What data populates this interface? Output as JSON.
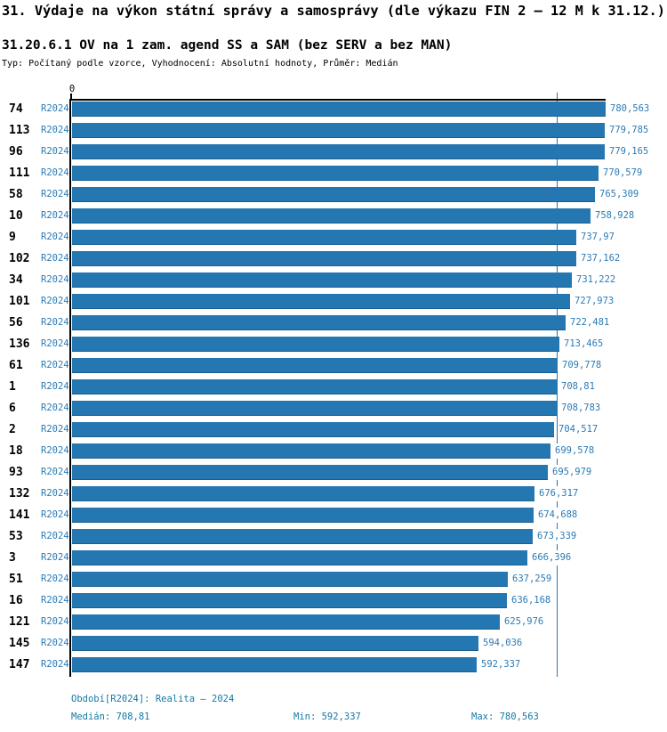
{
  "header": {
    "title": "31. Výdaje na výkon státní správy a samosprávy (dle výkazu FIN 2 – 12 M k 31.12.)",
    "subtitle": "31.20.6.1 OV na 1 zam. agend SS a SAM (bez SERV a bez MAN)",
    "meta": "Typ: Počítaný podle vzorce, Vyhodnocení: Absolutní hodnoty, Průměr: Medián"
  },
  "colors": {
    "bar": "#2577B2",
    "bar_edge": "#1A5E8E",
    "label_text": "#2B7BB5",
    "footer_text": "#1578A5",
    "axis": "#000000"
  },
  "chart_data": {
    "type": "bar",
    "orientation": "horizontal",
    "axis_zero_label": "0",
    "series_label": "R2024",
    "xlim": [
      0,
      780.563
    ],
    "median_value": 708.81,
    "min_value": 592.337,
    "max_value": 780.563,
    "rows": [
      {
        "id": "74",
        "period": "R2024",
        "value": 780.563,
        "label": "780,563"
      },
      {
        "id": "113",
        "period": "R2024",
        "value": 779.785,
        "label": "779,785"
      },
      {
        "id": "96",
        "period": "R2024",
        "value": 779.165,
        "label": "779,165"
      },
      {
        "id": "111",
        "period": "R2024",
        "value": 770.579,
        "label": "770,579"
      },
      {
        "id": "58",
        "period": "R2024",
        "value": 765.309,
        "label": "765,309"
      },
      {
        "id": "10",
        "period": "R2024",
        "value": 758.928,
        "label": "758,928"
      },
      {
        "id": "9",
        "period": "R2024",
        "value": 737.97,
        "label": "737,97"
      },
      {
        "id": "102",
        "period": "R2024",
        "value": 737.162,
        "label": "737,162"
      },
      {
        "id": "34",
        "period": "R2024",
        "value": 731.222,
        "label": "731,222"
      },
      {
        "id": "101",
        "period": "R2024",
        "value": 727.973,
        "label": "727,973"
      },
      {
        "id": "56",
        "period": "R2024",
        "value": 722.481,
        "label": "722,481"
      },
      {
        "id": "136",
        "period": "R2024",
        "value": 713.465,
        "label": "713,465"
      },
      {
        "id": "61",
        "period": "R2024",
        "value": 709.778,
        "label": "709,778"
      },
      {
        "id": "1",
        "period": "R2024",
        "value": 708.81,
        "label": "708,81"
      },
      {
        "id": "6",
        "period": "R2024",
        "value": 708.783,
        "label": "708,783"
      },
      {
        "id": "2",
        "period": "R2024",
        "value": 704.517,
        "label": "704,517"
      },
      {
        "id": "18",
        "period": "R2024",
        "value": 699.578,
        "label": "699,578"
      },
      {
        "id": "93",
        "period": "R2024",
        "value": 695.979,
        "label": "695,979"
      },
      {
        "id": "132",
        "period": "R2024",
        "value": 676.317,
        "label": "676,317"
      },
      {
        "id": "141",
        "period": "R2024",
        "value": 674.688,
        "label": "674,688"
      },
      {
        "id": "53",
        "period": "R2024",
        "value": 673.339,
        "label": "673,339"
      },
      {
        "id": "3",
        "period": "R2024",
        "value": 666.396,
        "label": "666,396"
      },
      {
        "id": "51",
        "period": "R2024",
        "value": 637.259,
        "label": "637,259"
      },
      {
        "id": "16",
        "period": "R2024",
        "value": 636.168,
        "label": "636,168"
      },
      {
        "id": "121",
        "period": "R2024",
        "value": 625.976,
        "label": "625,976"
      },
      {
        "id": "145",
        "period": "R2024",
        "value": 594.036,
        "label": "594,036"
      },
      {
        "id": "147",
        "period": "R2024",
        "value": 592.337,
        "label": "592,337"
      }
    ]
  },
  "footer": {
    "period_line": "Období[R2024]: Realita – 2024",
    "median_label": "Medián: 708,81",
    "min_label": "Min: 592,337",
    "max_label": "Max: 780,563"
  }
}
